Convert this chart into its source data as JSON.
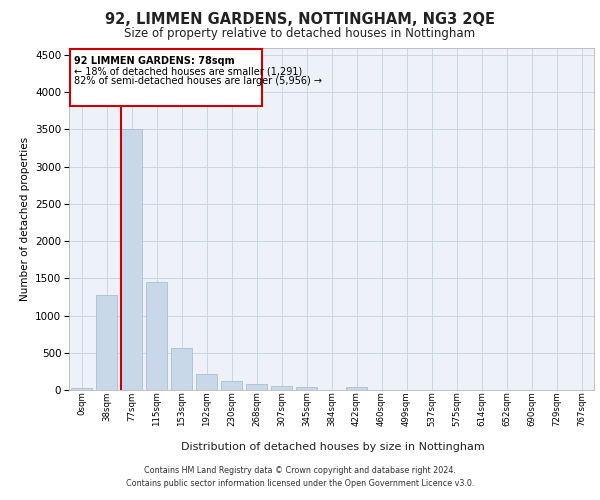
{
  "title": "92, LIMMEN GARDENS, NOTTINGHAM, NG3 2QE",
  "subtitle": "Size of property relative to detached houses in Nottingham",
  "xlabel": "Distribution of detached houses by size in Nottingham",
  "ylabel": "Number of detached properties",
  "bar_color": "#c8d8e8",
  "bar_edge_color": "#a0b8cc",
  "grid_color": "#c8d8e0",
  "background_color": "#eef2f8",
  "annotation_box_color": "#cc0000",
  "property_line_color": "#cc0000",
  "annotation_text_line1": "92 LIMMEN GARDENS: 78sqm",
  "annotation_text_line2": "← 18% of detached houses are smaller (1,291)",
  "annotation_text_line3": "82% of semi-detached houses are larger (5,956) →",
  "footer_line1": "Contains HM Land Registry data © Crown copyright and database right 2024.",
  "footer_line2": "Contains public sector information licensed under the Open Government Licence v3.0.",
  "categories": [
    "0sqm",
    "38sqm",
    "77sqm",
    "115sqm",
    "153sqm",
    "192sqm",
    "230sqm",
    "268sqm",
    "307sqm",
    "345sqm",
    "384sqm",
    "422sqm",
    "460sqm",
    "499sqm",
    "537sqm",
    "575sqm",
    "614sqm",
    "652sqm",
    "690sqm",
    "729sqm",
    "767sqm"
  ],
  "values": [
    30,
    1270,
    3500,
    1450,
    570,
    215,
    115,
    80,
    55,
    40,
    0,
    35,
    0,
    0,
    0,
    0,
    0,
    0,
    0,
    0,
    0
  ],
  "ylim": [
    0,
    4600
  ],
  "yticks": [
    0,
    500,
    1000,
    1500,
    2000,
    2500,
    3000,
    3500,
    4000,
    4500
  ]
}
